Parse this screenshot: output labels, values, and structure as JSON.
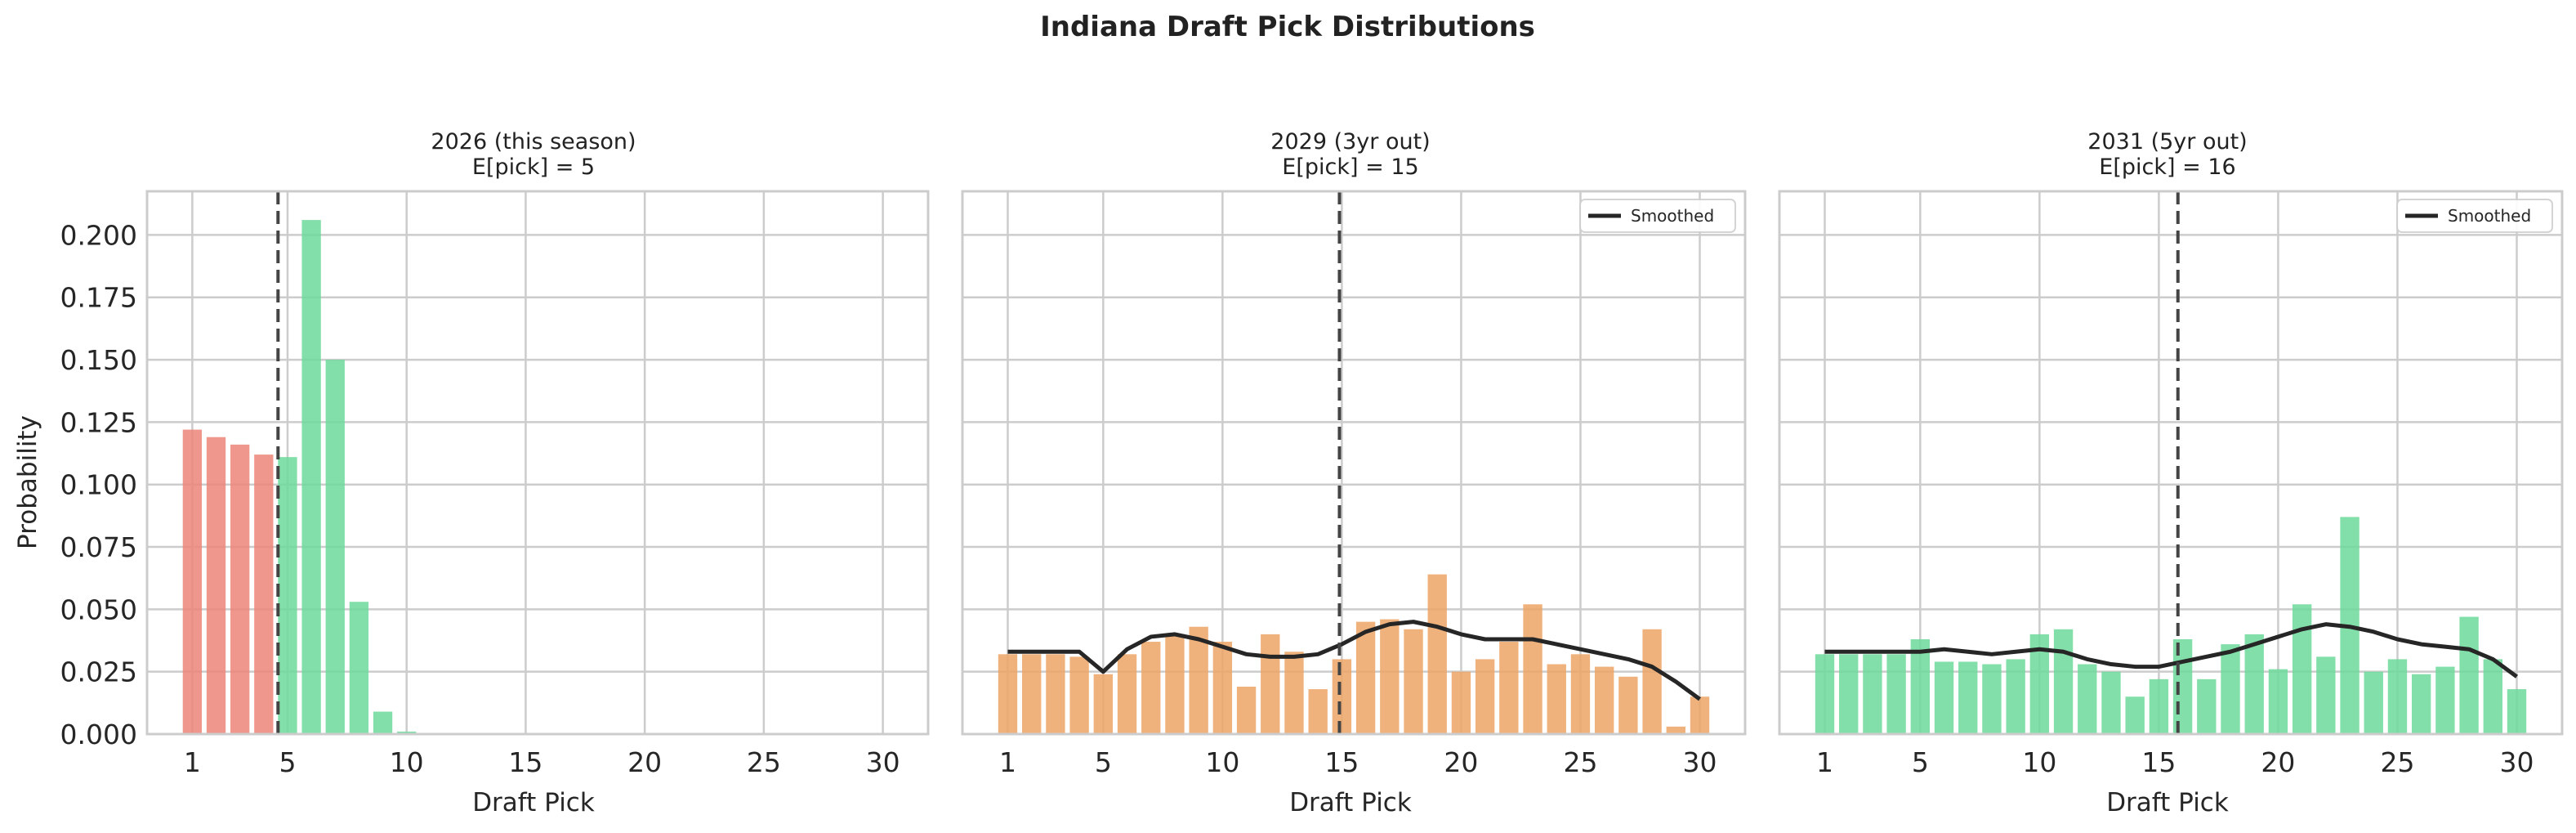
{
  "figure": {
    "title": "Indiana Draft Pick Distributions"
  },
  "colors": {
    "lottery": "#ec8479",
    "green": "#6dd99a",
    "orange": "#eda565",
    "smoothed": "#262626",
    "expected_line": "#444444",
    "grid": "#cccccc",
    "spine": "#cccccc"
  },
  "chart_data": [
    {
      "type": "bar",
      "title": "2026 (this season)",
      "subtitle": "E[pick] = 5",
      "xlabel": "Draft Pick",
      "ylabel": "Probability",
      "xticks": [
        1,
        5,
        10,
        15,
        20,
        25,
        30
      ],
      "yticks": [
        "0.000",
        "0.025",
        "0.050",
        "0.075",
        "0.100",
        "0.125",
        "0.150",
        "0.175",
        "0.200"
      ],
      "ylim": [
        0,
        0.2175
      ],
      "xlim": [
        -0.9,
        31.9
      ],
      "grid": true,
      "expected_pick": 4.6,
      "x": [
        1,
        2,
        3,
        4,
        5,
        6,
        7,
        8,
        9,
        10,
        11,
        12,
        13,
        14,
        15,
        16,
        17,
        18,
        19,
        20,
        21,
        22,
        23,
        24,
        25,
        26,
        27,
        28,
        29,
        30
      ],
      "values": [
        0.122,
        0.119,
        0.116,
        0.112,
        0.111,
        0.206,
        0.15,
        0.053,
        0.009,
        0.001,
        0,
        0,
        0,
        0,
        0,
        0,
        0,
        0,
        0,
        0,
        0,
        0,
        0,
        0,
        0,
        0,
        0,
        0,
        0,
        0
      ],
      "bar_colors": [
        "lottery",
        "lottery",
        "lottery",
        "lottery",
        "green",
        "green",
        "green",
        "green",
        "green",
        "green",
        "green",
        "green",
        "green",
        "green",
        "green",
        "green",
        "green",
        "green",
        "green",
        "green",
        "green",
        "green",
        "green",
        "green",
        "green",
        "green",
        "green",
        "green",
        "green",
        "green"
      ]
    },
    {
      "type": "bar",
      "title": "2029 (3yr out)",
      "subtitle": "E[pick] = 15",
      "xlabel": "Draft Pick",
      "xticks": [
        1,
        5,
        10,
        15,
        20,
        25,
        30
      ],
      "ylim": [
        0,
        0.2175
      ],
      "xlim": [
        -0.9,
        31.9
      ],
      "grid": true,
      "expected_pick": 14.9,
      "legend": {
        "label": "Smoothed",
        "position": "top-right"
      },
      "bar_color": "orange",
      "x": [
        1,
        2,
        3,
        4,
        5,
        6,
        7,
        8,
        9,
        10,
        11,
        12,
        13,
        14,
        15,
        16,
        17,
        18,
        19,
        20,
        21,
        22,
        23,
        24,
        25,
        26,
        27,
        28,
        29,
        30
      ],
      "values": [
        0.032,
        0.032,
        0.032,
        0.031,
        0.024,
        0.032,
        0.037,
        0.04,
        0.043,
        0.037,
        0.019,
        0.04,
        0.033,
        0.018,
        0.03,
        0.045,
        0.046,
        0.042,
        0.064,
        0.025,
        0.03,
        0.037,
        0.052,
        0.028,
        0.032,
        0.027,
        0.023,
        0.042,
        0.003,
        0.015
      ],
      "smoothed": [
        0.033,
        0.033,
        0.033,
        0.033,
        0.025,
        0.034,
        0.039,
        0.04,
        0.038,
        0.035,
        0.032,
        0.031,
        0.031,
        0.032,
        0.036,
        0.041,
        0.044,
        0.045,
        0.043,
        0.04,
        0.038,
        0.038,
        0.038,
        0.036,
        0.034,
        0.032,
        0.03,
        0.027,
        0.021,
        0.014
      ]
    },
    {
      "type": "bar",
      "title": "2031 (5yr out)",
      "subtitle": "E[pick] = 16",
      "xlabel": "Draft Pick",
      "xticks": [
        1,
        5,
        10,
        15,
        20,
        25,
        30
      ],
      "ylim": [
        0,
        0.2175
      ],
      "xlim": [
        -0.9,
        31.9
      ],
      "grid": true,
      "expected_pick": 15.8,
      "legend": {
        "label": "Smoothed",
        "position": "top-right"
      },
      "bar_color": "green",
      "x": [
        1,
        2,
        3,
        4,
        5,
        6,
        7,
        8,
        9,
        10,
        11,
        12,
        13,
        14,
        15,
        16,
        17,
        18,
        19,
        20,
        21,
        22,
        23,
        24,
        25,
        26,
        27,
        28,
        29,
        30
      ],
      "values": [
        0.032,
        0.032,
        0.032,
        0.032,
        0.038,
        0.029,
        0.029,
        0.028,
        0.03,
        0.04,
        0.042,
        0.028,
        0.025,
        0.015,
        0.022,
        0.038,
        0.022,
        0.036,
        0.04,
        0.026,
        0.052,
        0.031,
        0.087,
        0.025,
        0.03,
        0.024,
        0.027,
        0.047,
        0.03,
        0.018
      ],
      "smoothed": [
        0.033,
        0.033,
        0.033,
        0.033,
        0.033,
        0.034,
        0.033,
        0.032,
        0.033,
        0.034,
        0.033,
        0.03,
        0.028,
        0.027,
        0.027,
        0.029,
        0.031,
        0.033,
        0.036,
        0.039,
        0.042,
        0.044,
        0.043,
        0.041,
        0.038,
        0.036,
        0.035,
        0.034,
        0.03,
        0.023
      ]
    }
  ]
}
